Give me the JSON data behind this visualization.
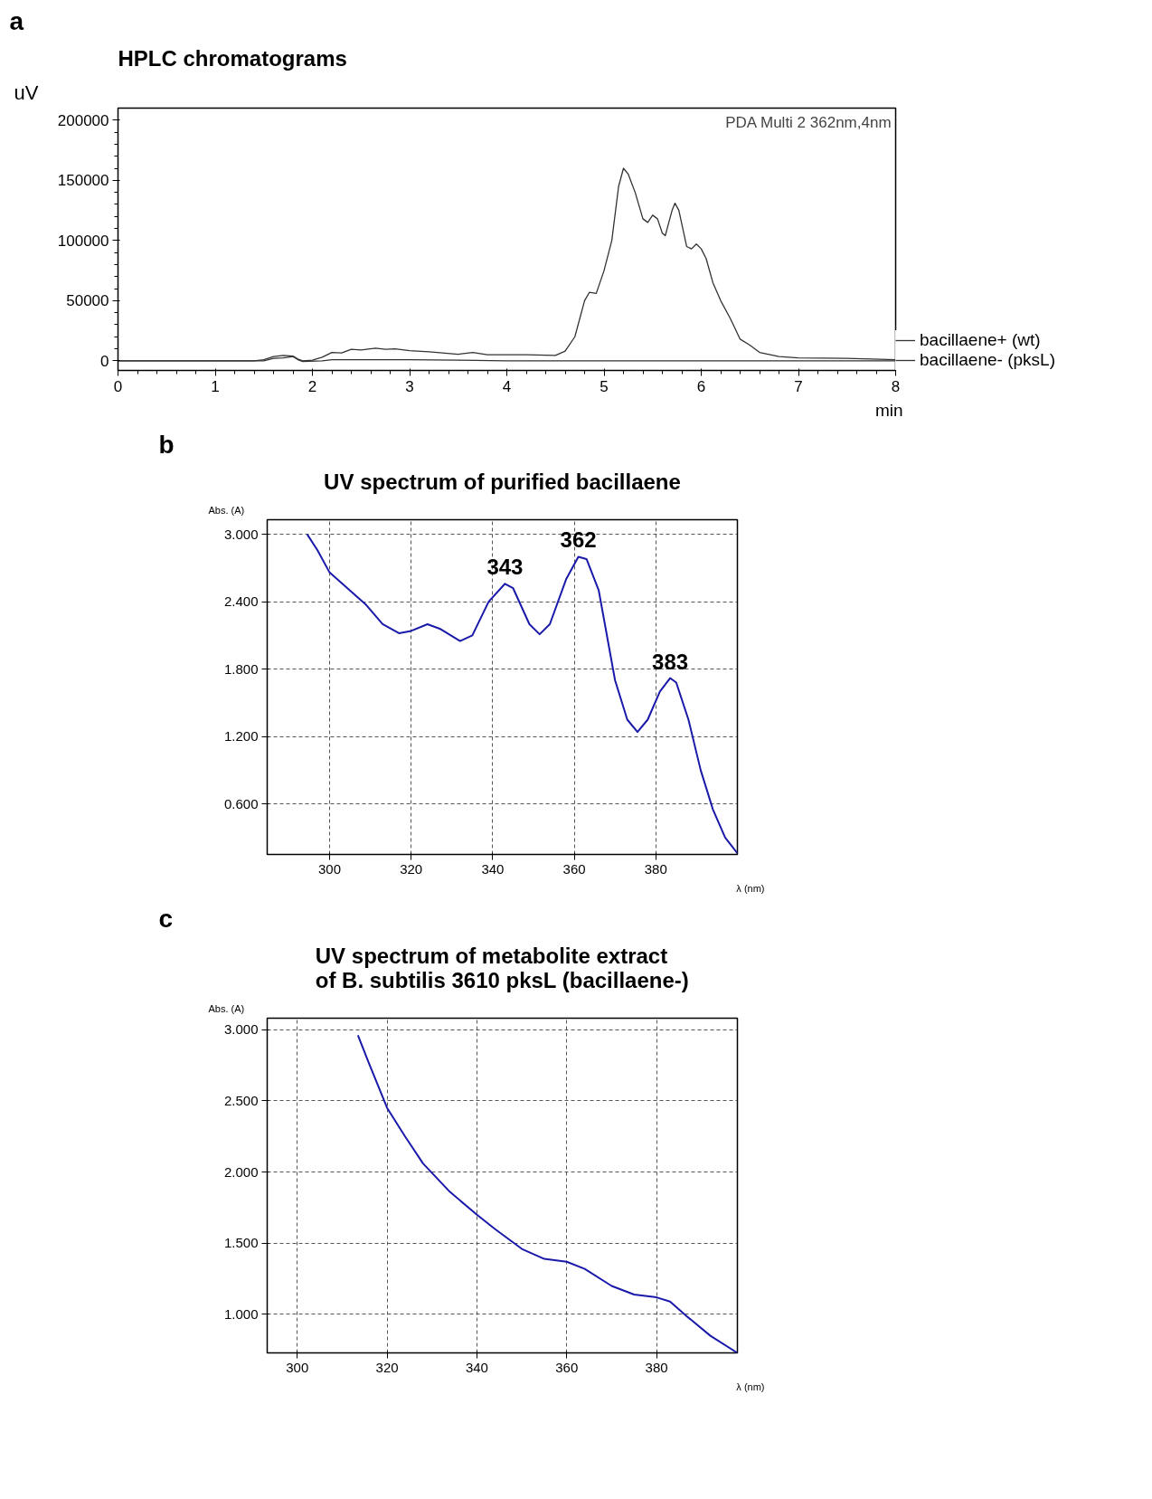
{
  "chart_data": [
    {
      "type": "line",
      "title": "HPLC chromatograms",
      "ylabel": "uV",
      "xlabel": "min",
      "xlim": [
        0,
        8
      ],
      "ylim": [
        -8000,
        210000
      ],
      "xticks": [
        0,
        1,
        2,
        3,
        4,
        5,
        6,
        7,
        8
      ],
      "yticks": [
        0,
        50000,
        100000,
        150000,
        200000
      ],
      "grid": false,
      "legend": "right",
      "annotations": [
        "a",
        "PDA Multi 2 362nm,4nm"
      ],
      "series": [
        {
          "name": "bacillaene+ (wt)",
          "color": "#333333",
          "x": [
            0,
            1.4,
            1.5,
            1.6,
            1.7,
            1.8,
            1.85,
            1.9,
            2.0,
            2.1,
            2.2,
            2.3,
            2.4,
            2.5,
            2.65,
            2.75,
            2.85,
            3.0,
            3.2,
            3.5,
            3.65,
            3.8,
            4.2,
            4.5,
            4.6,
            4.7,
            4.8,
            4.85,
            4.92,
            5.0,
            5.08,
            5.15,
            5.2,
            5.25,
            5.32,
            5.4,
            5.45,
            5.5,
            5.55,
            5.6,
            5.63,
            5.7,
            5.73,
            5.77,
            5.85,
            5.9,
            5.95,
            6.0,
            6.05,
            6.12,
            6.2,
            6.3,
            6.4,
            6.5,
            6.6,
            6.8,
            7.0,
            7.5,
            8.0
          ],
          "values": [
            0,
            0,
            1000,
            3500,
            4500,
            4000,
            1500,
            0,
            500,
            3000,
            7000,
            6500,
            9500,
            9000,
            10500,
            9500,
            10000,
            8500,
            7500,
            5500,
            7000,
            5000,
            5000,
            4500,
            8000,
            20000,
            50000,
            57000,
            56000,
            75000,
            100000,
            145000,
            160000,
            155000,
            140000,
            118000,
            115000,
            121000,
            118000,
            106000,
            104000,
            125000,
            131000,
            125000,
            95000,
            93000,
            97000,
            93000,
            85000,
            65000,
            50000,
            35000,
            18000,
            13000,
            7000,
            3500,
            2500,
            2000,
            1000
          ]
        },
        {
          "name": "bacillaene- (pksL)",
          "color": "#333333",
          "x": [
            0,
            1.5,
            1.6,
            1.7,
            1.8,
            1.85,
            1.9,
            2.1,
            2.2,
            3.0,
            3.5,
            4.0,
            8.0
          ],
          "values": [
            0,
            0,
            2000,
            2500,
            3500,
            1000,
            -500,
            0,
            1000,
            1000,
            500,
            0,
            0
          ]
        }
      ]
    },
    {
      "type": "line",
      "title": "UV spectrum of purified bacillaene",
      "ylabel": "Abs. (A)",
      "xlabel": "λ (nm)",
      "xlim": [
        284.7,
        400
      ],
      "ylim": [
        0.15,
        3.13
      ],
      "xticks": [
        300,
        320,
        340,
        360,
        380
      ],
      "yticks": [
        {
          "value": 0.6,
          "label": "0.600"
        },
        {
          "value": 1.2,
          "label": "1.200"
        },
        {
          "value": 1.8,
          "label": "1.800"
        },
        {
          "value": 2.4,
          "label": "2.400"
        },
        {
          "value": 3.0,
          "label": "3.000"
        }
      ],
      "grid": true,
      "legend": false,
      "annotations": [
        "b",
        {
          "text": "343",
          "x": 343,
          "y": 2.56
        },
        {
          "text": "362",
          "x": 361,
          "y": 2.8
        },
        {
          "text": "383",
          "x": 383.5,
          "y": 1.72
        }
      ],
      "series": [
        {
          "color": "#1a1aaa",
          "x": [
            294.5,
            297,
            300,
            305,
            309,
            313,
            317,
            320,
            324,
            327,
            332,
            335,
            339,
            343,
            345,
            349,
            351.5,
            354,
            358,
            361,
            363,
            366,
            370,
            373,
            375.5,
            378,
            381,
            383.5,
            385,
            388,
            391,
            394,
            397,
            400
          ],
          "values": [
            3.0,
            2.86,
            2.66,
            2.5,
            2.37,
            2.2,
            2.12,
            2.14,
            2.2,
            2.16,
            2.05,
            2.1,
            2.4,
            2.56,
            2.52,
            2.2,
            2.11,
            2.2,
            2.6,
            2.8,
            2.78,
            2.5,
            1.7,
            1.35,
            1.24,
            1.35,
            1.6,
            1.72,
            1.68,
            1.35,
            0.9,
            0.55,
            0.3,
            0.16
          ]
        }
      ]
    },
    {
      "type": "line",
      "title": "UV spectrum of metabolite extract\nof B. subtilis 3610 pksL (bacillaene-)",
      "ylabel": "Abs. (A)",
      "xlabel": "λ (nm)",
      "xlim": [
        293.3,
        398
      ],
      "ylim": [
        0.73,
        3.08
      ],
      "xticks": [
        300,
        320,
        340,
        360,
        380
      ],
      "yticks": [
        {
          "value": 1.0,
          "label": "1.000"
        },
        {
          "value": 1.5,
          "label": "1.500"
        },
        {
          "value": 2.0,
          "label": "2.000"
        },
        {
          "value": 2.5,
          "label": "2.500"
        },
        {
          "value": 3.0,
          "label": "3.000"
        }
      ],
      "grid": true,
      "legend": false,
      "annotations": [
        "c"
      ],
      "series": [
        {
          "color": "#1a1aaa",
          "x": [
            313.5,
            316,
            320,
            324,
            328,
            334,
            340,
            344,
            350,
            355,
            360,
            364,
            370,
            375,
            380,
            383,
            387,
            392,
            398
          ],
          "values": [
            2.96,
            2.76,
            2.45,
            2.25,
            2.06,
            1.86,
            1.7,
            1.6,
            1.46,
            1.39,
            1.37,
            1.32,
            1.2,
            1.14,
            1.12,
            1.09,
            0.98,
            0.85,
            0.73
          ]
        }
      ]
    }
  ]
}
